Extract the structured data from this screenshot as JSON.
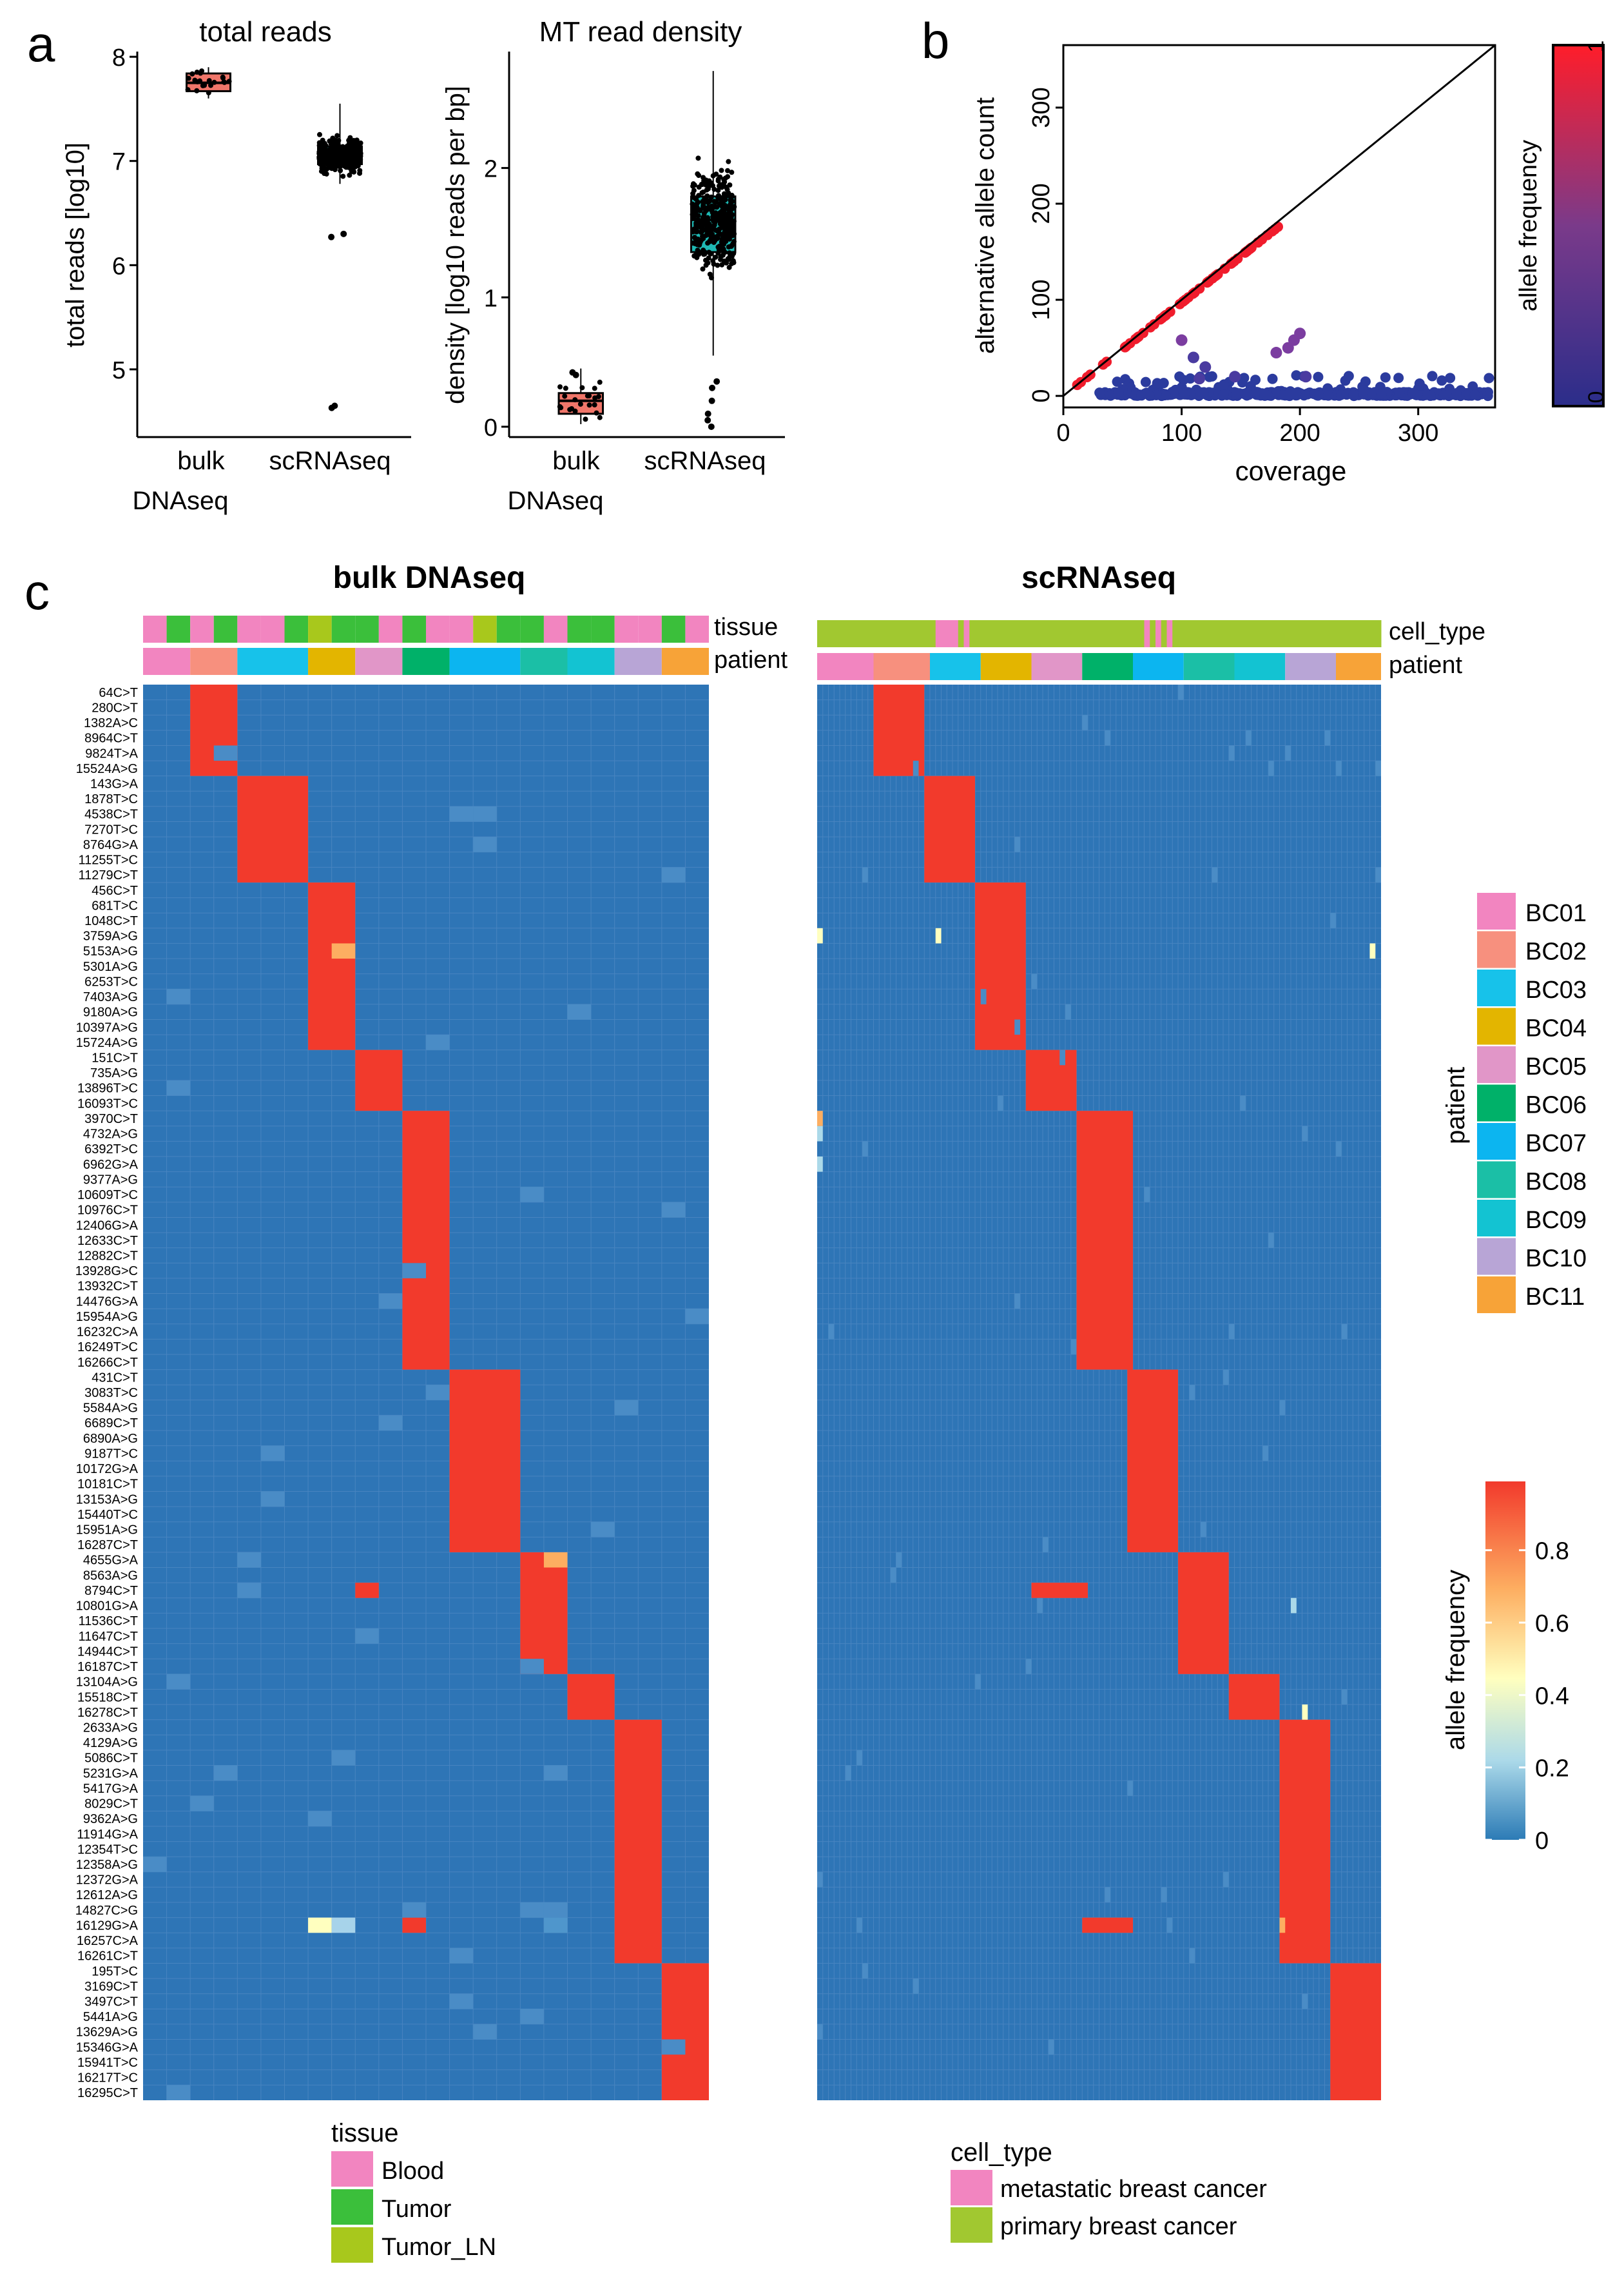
{
  "panel_labels": {
    "a": "a",
    "b": "b",
    "c": "c"
  },
  "colors": {
    "bulk": "#f0766a",
    "sc": "#1fb9b4",
    "cell_bg": "#2e75b6",
    "cell_hi": "#f23a2c",
    "grid": "#5a8fc8"
  },
  "patient_colors": [
    "#f285c0",
    "#f7907e",
    "#17c2ea",
    "#e3b500",
    "#e196c8",
    "#00b169",
    "#0cb5f0",
    "#1bbfa6",
    "#13c3d2",
    "#b8a5d6",
    "#f7a338"
  ],
  "chart_data": [
    {
      "type": "box",
      "title": "total reads",
      "ylabel": "total reads [log10]",
      "ylim": [
        4.35,
        8.05
      ],
      "yticks": [
        "5",
        "6",
        "7",
        "8"
      ],
      "categories": [
        "bulk",
        "scRNAseq"
      ],
      "category_sublabels": [
        "DNAseq",
        ""
      ],
      "boxes": [
        {
          "name": "bulk DNAseq",
          "q1": 7.67,
          "median": 7.75,
          "q3": 7.84,
          "whisker_low": 7.6,
          "whisker_high": 7.9
        },
        {
          "name": "scRNAseq",
          "q1": 6.97,
          "median": 7.05,
          "q3": 7.14,
          "whisker_low": 6.78,
          "whisker_high": 7.55
        }
      ]
    },
    {
      "type": "box",
      "title": "MT read density",
      "ylabel": "density [log10 reads per bp]",
      "ylim": [
        -0.08,
        2.9
      ],
      "yticks": [
        "0",
        "1",
        "2"
      ],
      "categories": [
        "bulk",
        "scRNAseq"
      ],
      "category_sublabels": [
        "DNAseq",
        ""
      ],
      "boxes": [
        {
          "name": "bulk DNAseq",
          "q1": 0.1,
          "median": 0.2,
          "q3": 0.26,
          "whisker_low": 0.02,
          "whisker_high": 0.45
        },
        {
          "name": "scRNAseq",
          "q1": 1.35,
          "median": 1.6,
          "q3": 1.78,
          "whisker_low": 0.55,
          "whisker_high": 2.75
        }
      ]
    },
    {
      "type": "scatter",
      "xlabel": "coverage",
      "ylabel": "alternative allele count",
      "xlim": [
        0,
        365
      ],
      "ylim": [
        -12,
        365
      ],
      "xticks": [
        "0",
        "100",
        "200",
        "300"
      ],
      "yticks": [
        "0",
        "100",
        "200",
        "300"
      ],
      "colorbar": {
        "label": "allele frequency",
        "min_label": "0",
        "max_label": "1"
      }
    },
    {
      "type": "heatmap",
      "title": "bulk DNAseq",
      "annotation_labels": [
        "tissue",
        "patient"
      ],
      "n_columns": 24,
      "tissue": [
        0,
        1,
        0,
        1,
        0,
        0,
        1,
        2,
        1,
        1,
        0,
        1,
        0,
        0,
        2,
        1,
        1,
        0,
        1,
        1,
        0,
        0,
        1,
        0
      ],
      "patient_widths": [
        2,
        2,
        3,
        2,
        2,
        2,
        3,
        2,
        2,
        2,
        2
      ],
      "rows": [
        "64C>T",
        "280C>T",
        "1382A>C",
        "8964C>T",
        "9824T>A",
        "15524A>G",
        "143G>A",
        "1878T>C",
        "4538C>T",
        "7270T>C",
        "8764G>A",
        "11255T>C",
        "11279C>T",
        "456C>T",
        "681T>C",
        "1048C>T",
        "3759A>G",
        "5153A>G",
        "5301A>G",
        "6253T>C",
        "7403A>G",
        "9180A>G",
        "10397A>G",
        "15724A>G",
        "151C>T",
        "735A>G",
        "13896T>C",
        "16093T>C",
        "3970C>T",
        "4732A>G",
        "6392T>C",
        "6962G>A",
        "9377A>G",
        "10609T>C",
        "10976C>T",
        "12406G>A",
        "12633C>T",
        "12882C>T",
        "13928G>C",
        "13932C>T",
        "14476G>A",
        "15954A>G",
        "16232C>A",
        "16249T>C",
        "16266C>T",
        "431C>T",
        "3083T>C",
        "5584A>G",
        "6689C>T",
        "6890A>G",
        "9187T>C",
        "10172G>A",
        "10181C>T",
        "13153A>G",
        "15440T>C",
        "15951A>G",
        "16287C>T",
        "4655G>A",
        "8563A>G",
        "8794C>T",
        "10801G>A",
        "11536C>T",
        "11647C>T",
        "14944C>T",
        "16187C>T",
        "13104A>G",
        "15518C>T",
        "16278C>T",
        "2633A>G",
        "4129A>G",
        "5086C>T",
        "5231G>A",
        "5417G>A",
        "8029C>T",
        "9362A>G",
        "11914G>A",
        "12354T>C",
        "12358A>G",
        "12372G>A",
        "12612A>G",
        "14827C>G",
        "16129G>A",
        "16257C>A",
        "16261C>T",
        "195T>C",
        "3169C>T",
        "3497C>T",
        "5441A>G",
        "13629A>G",
        "15346G>A",
        "15941T>C",
        "16217T>C",
        "16295C>T"
      ],
      "row_groups": [
        6,
        7,
        11,
        4,
        17,
        12,
        8,
        3,
        16,
        9
      ]
    },
    {
      "type": "heatmap",
      "title": "scRNAseq",
      "annotation_labels": [
        "cell_type",
        "patient"
      ],
      "n_columns": 100,
      "patient_widths": [
        10,
        10,
        9,
        9,
        9,
        9,
        9,
        9,
        9,
        9,
        8
      ]
    }
  ],
  "legends": {
    "patient": {
      "title": "patient",
      "items": [
        "BC01",
        "BC02",
        "BC03",
        "BC04",
        "BC05",
        "BC06",
        "BC07",
        "BC08",
        "BC09",
        "BC10",
        "BC11"
      ]
    },
    "allele_frequency": {
      "title": "allele frequency",
      "ticks": [
        "0",
        "0.2",
        "0.4",
        "0.6",
        "0.8"
      ]
    },
    "tissue": {
      "title": "tissue",
      "items": [
        {
          "label": "Blood",
          "color": "#f285c0"
        },
        {
          "label": "Tumor",
          "color": "#3bbf3b"
        },
        {
          "label": "Tumor_LN",
          "color": "#a8c81c"
        }
      ]
    },
    "cell_type": {
      "title": "cell_type",
      "items": [
        {
          "label": "metastatic breast cancer",
          "color": "#f285c0"
        },
        {
          "label": "primary breast cancer",
          "color": "#a1c830"
        }
      ]
    }
  }
}
